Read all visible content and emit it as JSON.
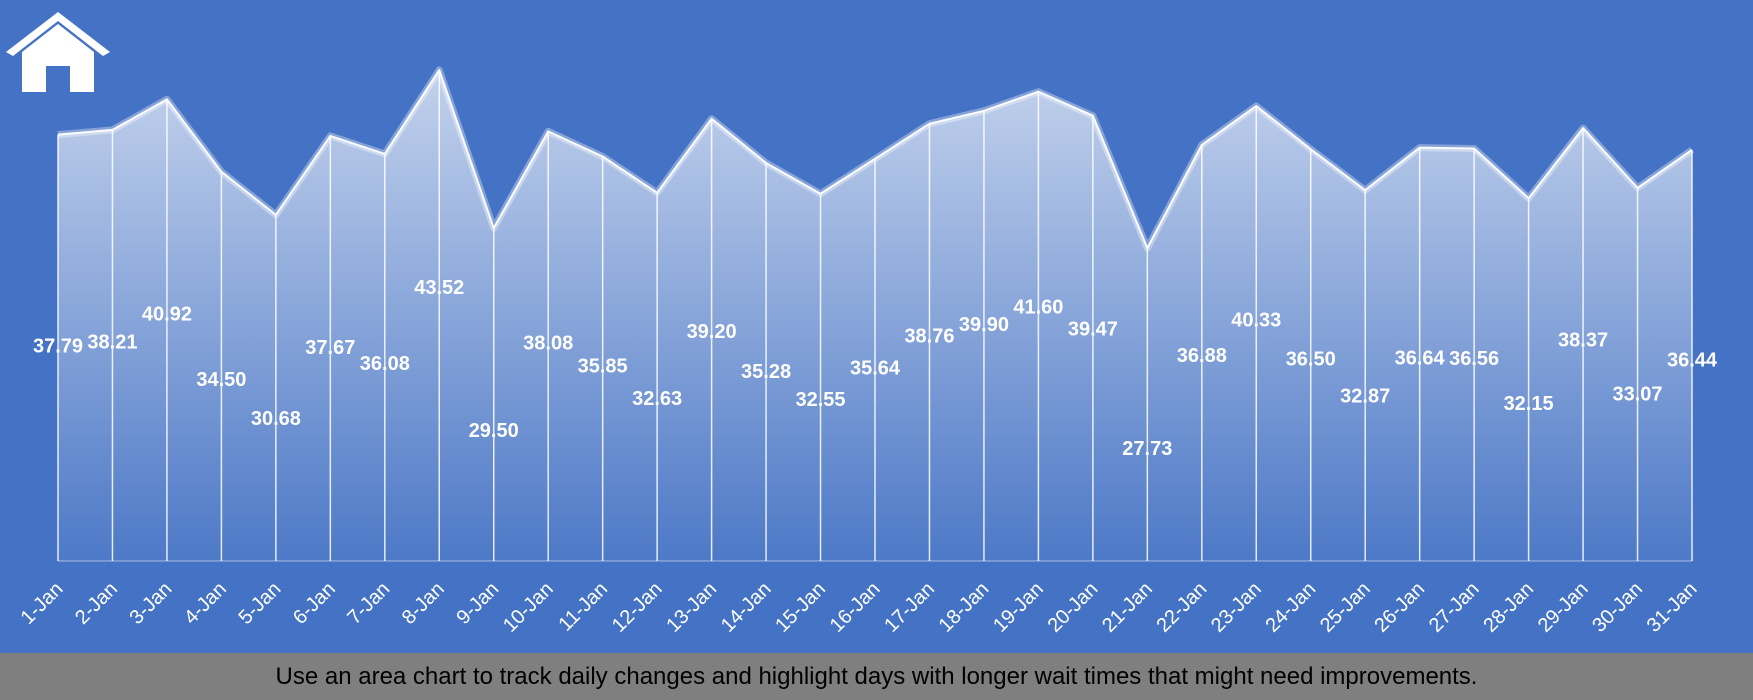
{
  "footer": {
    "text": "Use an area chart to track daily changes and highlight days with longer wait times that might need improvements."
  },
  "icons": {
    "home": "home-icon"
  },
  "colors": {
    "background": "#4472c4",
    "footer": "#7f7f7f",
    "line": "#ffffff"
  },
  "chart_data": {
    "type": "area",
    "title": "",
    "xlabel": "",
    "ylabel": "",
    "categories": [
      "1-Jan",
      "2-Jan",
      "3-Jan",
      "4-Jan",
      "5-Jan",
      "6-Jan",
      "7-Jan",
      "8-Jan",
      "9-Jan",
      "10-Jan",
      "11-Jan",
      "12-Jan",
      "13-Jan",
      "14-Jan",
      "15-Jan",
      "16-Jan",
      "17-Jan",
      "18-Jan",
      "19-Jan",
      "20-Jan",
      "21-Jan",
      "22-Jan",
      "23-Jan",
      "24-Jan",
      "25-Jan",
      "26-Jan",
      "27-Jan",
      "28-Jan",
      "29-Jan",
      "30-Jan",
      "31-Jan"
    ],
    "values": [
      37.79,
      38.21,
      40.92,
      34.5,
      30.68,
      37.67,
      36.08,
      43.52,
      29.5,
      38.08,
      35.85,
      32.63,
      39.2,
      35.28,
      32.55,
      35.64,
      38.76,
      39.9,
      41.6,
      39.47,
      27.73,
      36.88,
      40.33,
      36.5,
      32.87,
      36.64,
      36.56,
      32.15,
      38.37,
      33.07,
      36.44
    ],
    "labels": [
      "37.79",
      "38.21",
      "40.92",
      "34.50",
      "30.68",
      "37.67",
      "36.08",
      "43.52",
      "29.50",
      "38.08",
      "35.85",
      "32.63",
      "39.20",
      "35.28",
      "32.55",
      "35.64",
      "38.76",
      "39.90",
      "41.60",
      "39.47",
      "27.73",
      "36.88",
      "40.33",
      "36.50",
      "32.87",
      "36.64",
      "36.56",
      "32.15",
      "38.37",
      "33.07",
      "36.44"
    ],
    "ylim": [
      0,
      46
    ],
    "grid": false,
    "legend": "none"
  }
}
